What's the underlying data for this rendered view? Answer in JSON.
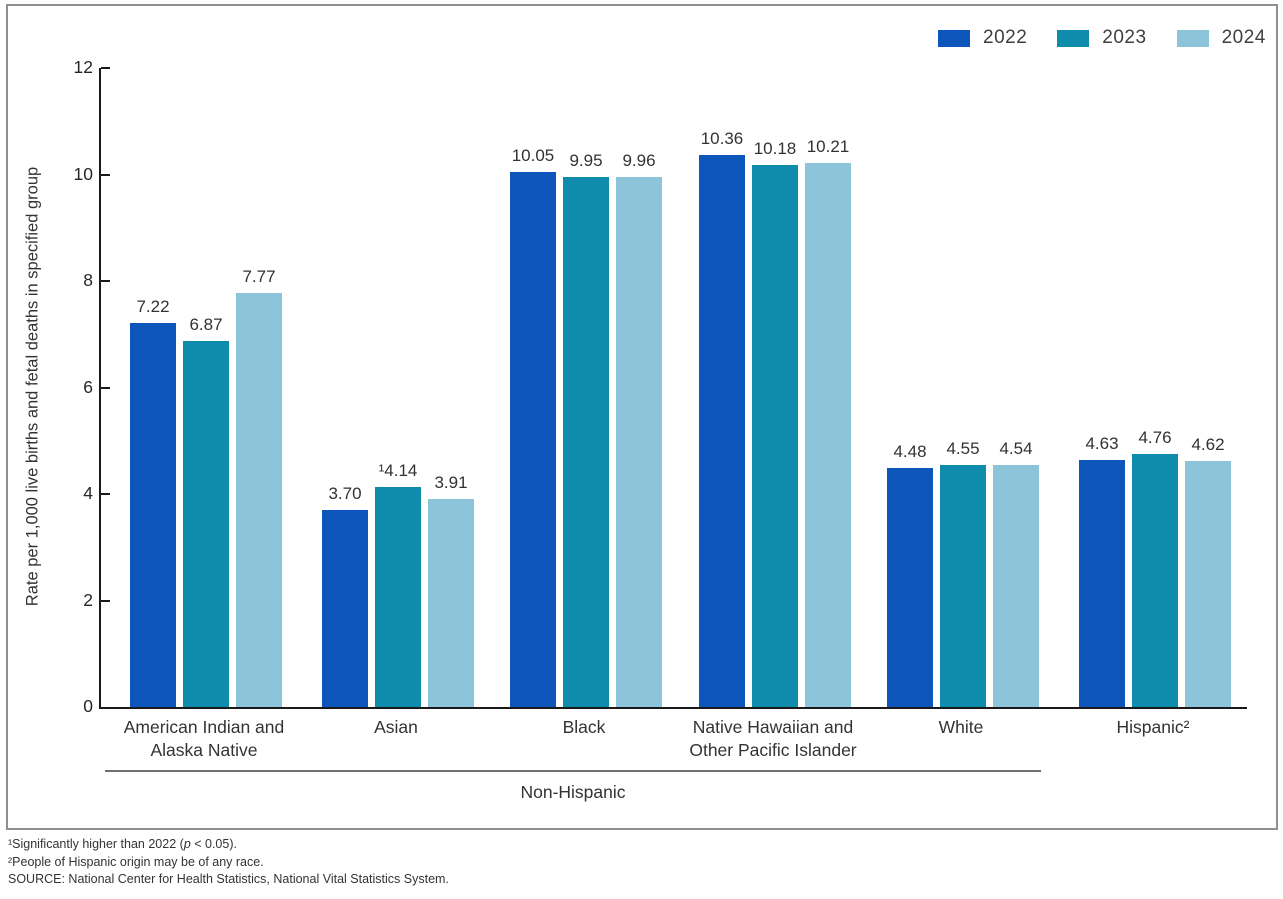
{
  "figure": {
    "non_hispanic_bracket_label": "Non-Hispanic",
    "footnotes": [
      {
        "pre": "¹Significantly higher than 2022 (",
        "italic": "p",
        "post": " < 0.05)."
      },
      {
        "pre": "²People of Hispanic origin may be of any race.",
        "italic": "",
        "post": ""
      },
      {
        "pre": "SOURCE: National Center for Health Statistics, National Vital Statistics System.",
        "italic": "",
        "post": ""
      }
    ]
  },
  "chart_data": {
    "type": "bar",
    "title": "",
    "xlabel": "",
    "ylabel": "Rate per 1,000 live births and fetal deaths in specified group",
    "ylim": [
      0,
      12
    ],
    "yticks": [
      0,
      2,
      4,
      6,
      8,
      10,
      12
    ],
    "grid": false,
    "legend_position": "top-right",
    "categories": [
      "American Indian and\nAlaska Native",
      "Asian",
      "Black",
      "Native Hawaiian and\nOther Pacific Islander",
      "White",
      "Hispanic²"
    ],
    "series": [
      {
        "name": "2022",
        "color": "#0d55bb",
        "values": [
          7.22,
          3.7,
          10.05,
          10.36,
          4.48,
          4.63
        ],
        "labels": [
          "7.22",
          "3.70",
          "10.05",
          "10.36",
          "4.48",
          "4.63"
        ]
      },
      {
        "name": "2023",
        "color": "#0f8cab",
        "values": [
          6.87,
          4.14,
          9.95,
          10.18,
          4.55,
          4.76
        ],
        "labels": [
          "6.87",
          "¹4.14",
          "9.95",
          "10.18",
          "4.55",
          "4.76"
        ]
      },
      {
        "name": "2024",
        "color": "#8cc5da",
        "values": [
          7.77,
          3.91,
          9.96,
          10.21,
          4.54,
          4.62
        ],
        "labels": [
          "7.77",
          "3.91",
          "9.96",
          "10.21",
          "4.54",
          "4.62"
        ]
      }
    ],
    "annotations": [
      "Non-Hispanic bracket spans the first five categories"
    ]
  }
}
